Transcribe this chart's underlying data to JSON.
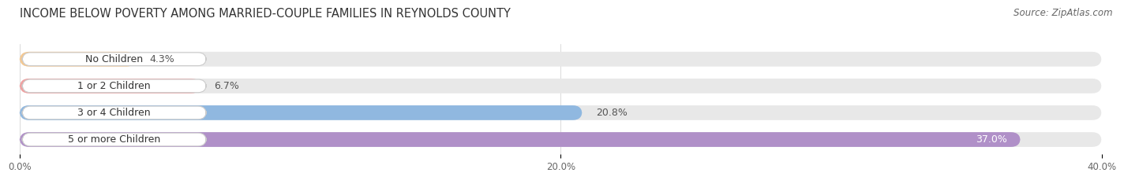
{
  "title": "INCOME BELOW POVERTY AMONG MARRIED-COUPLE FAMILIES IN REYNOLDS COUNTY",
  "source": "Source: ZipAtlas.com",
  "categories": [
    "No Children",
    "1 or 2 Children",
    "3 or 4 Children",
    "5 or more Children"
  ],
  "values": [
    4.3,
    6.7,
    20.8,
    37.0
  ],
  "bar_colors": [
    "#f5c890",
    "#f0a0a0",
    "#90b8e0",
    "#b090c8"
  ],
  "bg_track_color": "#e8e8e8",
  "xlim": [
    0,
    40
  ],
  "xticks": [
    0.0,
    20.0,
    40.0
  ],
  "xtick_labels": [
    "0.0%",
    "20.0%",
    "40.0%"
  ],
  "title_fontsize": 10.5,
  "source_fontsize": 8.5,
  "label_fontsize": 9,
  "value_fontsize": 9,
  "background_color": "#ffffff",
  "value_colors": [
    "#555555",
    "#555555",
    "#555555",
    "#ffffff"
  ]
}
